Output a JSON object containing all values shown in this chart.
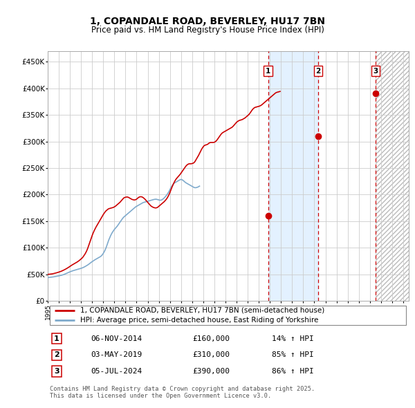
{
  "title": "1, COPANDALE ROAD, BEVERLEY, HU17 7BN",
  "subtitle": "Price paid vs. HM Land Registry's House Price Index (HPI)",
  "ylim": [
    0,
    470000
  ],
  "yticks": [
    0,
    50000,
    100000,
    150000,
    200000,
    250000,
    300000,
    350000,
    400000,
    450000
  ],
  "ytick_labels": [
    "£0",
    "£50K",
    "£100K",
    "£150K",
    "£200K",
    "£250K",
    "£300K",
    "£350K",
    "£400K",
    "£450K"
  ],
  "xlim_start": 1995.0,
  "xlim_end": 2027.5,
  "background_color": "#ffffff",
  "grid_color": "#cccccc",
  "red_line_color": "#cc0000",
  "blue_line_color": "#7faacc",
  "sale_markers": [
    {
      "year": 2014.83,
      "price": 160000,
      "label": "1"
    },
    {
      "year": 2019.33,
      "price": 310000,
      "label": "2"
    },
    {
      "year": 2024.5,
      "price": 390000,
      "label": "3"
    }
  ],
  "sale_line_color": "#cc0000",
  "shade_color": "#ddeeff",
  "footer_text": "Contains HM Land Registry data © Crown copyright and database right 2025.\nThis data is licensed under the Open Government Licence v3.0.",
  "legend_entries": [
    "1, COPANDALE ROAD, BEVERLEY, HU17 7BN (semi-detached house)",
    "HPI: Average price, semi-detached house, East Riding of Yorkshire"
  ],
  "table_rows": [
    {
      "label": "1",
      "date": "06-NOV-2014",
      "price": "£160,000",
      "change": "14% ↑ HPI"
    },
    {
      "label": "2",
      "date": "03-MAY-2019",
      "price": "£310,000",
      "change": "85% ↑ HPI"
    },
    {
      "label": "3",
      "date": "05-JUL-2024",
      "price": "£390,000",
      "change": "86% ↑ HPI"
    }
  ],
  "hpi_years_start": 1995.0,
  "hpi_years_step": 0.08333,
  "hpi_values": [
    44000,
    44200,
    44400,
    44600,
    44800,
    45000,
    45300,
    45600,
    45900,
    46200,
    46500,
    46800,
    47200,
    47600,
    48000,
    48500,
    49000,
    49500,
    50200,
    50900,
    51700,
    52500,
    53300,
    54000,
    54800,
    55500,
    56200,
    56800,
    57300,
    57800,
    58300,
    58800,
    59200,
    59700,
    60200,
    60800,
    61400,
    62000,
    62700,
    63500,
    64400,
    65400,
    66400,
    67500,
    68700,
    70000,
    71400,
    72800,
    74000,
    75200,
    76400,
    77500,
    78500,
    79500,
    80500,
    81500,
    82500,
    83500,
    85000,
    87000,
    89500,
    92500,
    96000,
    100000,
    105000,
    110000,
    115000,
    119000,
    123000,
    126500,
    129500,
    132000,
    134500,
    136500,
    138500,
    140500,
    143000,
    145500,
    148000,
    150500,
    153000,
    155500,
    157500,
    159000,
    160500,
    162000,
    163500,
    165000,
    166500,
    168000,
    169500,
    171000,
    172500,
    174000,
    175500,
    177000,
    178000,
    179000,
    180000,
    181000,
    182000,
    183000,
    184000,
    185000,
    185500,
    186000,
    186500,
    187000,
    187500,
    188000,
    188500,
    189000,
    189500,
    190000,
    190500,
    191000,
    191200,
    191400,
    191000,
    190500,
    190000,
    189500,
    189500,
    190000,
    191000,
    192500,
    194000,
    196000,
    198000,
    200500,
    203000,
    206000,
    209500,
    213000,
    216000,
    218500,
    220500,
    222000,
    223000,
    224000,
    225000,
    226000,
    227000,
    228000,
    228500,
    228000,
    227000,
    225500,
    224000,
    222500,
    221500,
    220500,
    219500,
    218500,
    217500,
    216500,
    215500,
    214500,
    213500,
    213000,
    213000,
    213500,
    214000,
    215000,
    216000
  ],
  "prop_years_start": 1995.0,
  "prop_years_step": 0.08333,
  "prop_values": [
    50000,
    50200,
    50400,
    50600,
    50800,
    51000,
    51400,
    51800,
    52200,
    52700,
    53200,
    53700,
    54300,
    54900,
    55500,
    56200,
    57000,
    57800,
    58700,
    59600,
    60600,
    61600,
    62700,
    63800,
    65000,
    66200,
    67400,
    68400,
    69400,
    70400,
    71400,
    72500,
    73500,
    74700,
    76000,
    77500,
    79000,
    80500,
    82500,
    85000,
    87500,
    90500,
    94000,
    98000,
    103000,
    108000,
    113000,
    118000,
    123000,
    127500,
    131500,
    135000,
    138500,
    141500,
    144500,
    147500,
    150500,
    153500,
    156500,
    159500,
    162500,
    165000,
    167500,
    169500,
    171000,
    172500,
    173500,
    174000,
    174500,
    175000,
    175500,
    176000,
    177000,
    178000,
    179500,
    181000,
    182500,
    184000,
    185500,
    187500,
    189500,
    191500,
    193500,
    194500,
    195000,
    195500,
    195500,
    195000,
    194000,
    193000,
    192000,
    191000,
    190500,
    190000,
    190000,
    190500,
    191500,
    193000,
    194500,
    195500,
    196000,
    196000,
    195500,
    194500,
    193000,
    191500,
    189500,
    187500,
    185500,
    183500,
    181500,
    179500,
    178000,
    177000,
    176000,
    175500,
    175000,
    175000,
    175500,
    176500,
    178000,
    179500,
    181000,
    182500,
    184000,
    185500,
    187000,
    189000,
    191000,
    193500,
    196500,
    200000,
    204000,
    208500,
    213000,
    217000,
    221000,
    224500,
    227500,
    230000,
    232000,
    234000,
    236000,
    238000,
    240500,
    243000,
    245500,
    248000,
    250500,
    253000,
    255000,
    256500,
    257500,
    258000,
    258000,
    258000,
    258500,
    259000,
    260000,
    262000,
    265000,
    268000,
    271000,
    274000,
    277500,
    281000,
    284500,
    287500,
    290000,
    292000,
    293000,
    293500,
    294000,
    295000,
    296500,
    297500,
    298000,
    298000,
    298000,
    298000,
    298500,
    299500,
    301000,
    303000,
    305500,
    308000,
    310500,
    313000,
    315000,
    316500,
    317500,
    318500,
    319500,
    320500,
    321500,
    322500,
    323500,
    324500,
    325500,
    326500,
    328000,
    330000,
    332000,
    334000,
    336000,
    337500,
    338500,
    339500,
    340000,
    340500,
    341000,
    342000,
    343000,
    344000,
    345500,
    347000,
    348500,
    350000,
    352000,
    354500,
    357000,
    359500,
    361500,
    363000,
    364000,
    364500,
    365000,
    365500,
    366000,
    366500,
    367500,
    368500,
    370000,
    371500,
    373000,
    374500,
    376000,
    377500,
    379000,
    380500,
    382000,
    383500,
    385000,
    386500,
    388000,
    389500,
    391000,
    392000,
    392500,
    393000,
    393500,
    394000
  ]
}
